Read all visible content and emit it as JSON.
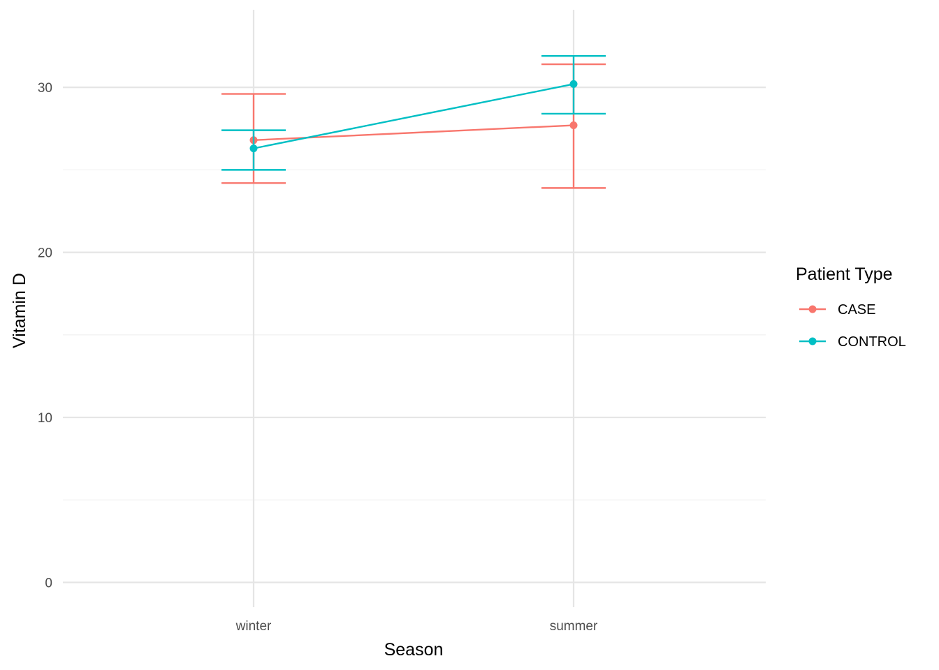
{
  "chart_data": {
    "type": "line",
    "title": "",
    "xlabel": "Season",
    "ylabel": "Vitamin D",
    "categories": [
      "winter",
      "summer"
    ],
    "ylim": [
      -1.5,
      34.7
    ],
    "yticks": [
      0,
      10,
      20,
      30
    ],
    "grid": true,
    "legend": {
      "title": "Patient Type",
      "placement": "right"
    },
    "series": [
      {
        "name": "CASE",
        "color": "#F8766D",
        "values": [
          26.8,
          27.7
        ],
        "error_low": [
          24.2,
          23.9
        ],
        "error_high": [
          29.6,
          31.4
        ]
      },
      {
        "name": "CONTROL",
        "color": "#00BFC4",
        "values": [
          26.3,
          30.2
        ],
        "error_low": [
          25.0,
          28.4
        ],
        "error_high": [
          27.4,
          31.9
        ]
      }
    ]
  }
}
